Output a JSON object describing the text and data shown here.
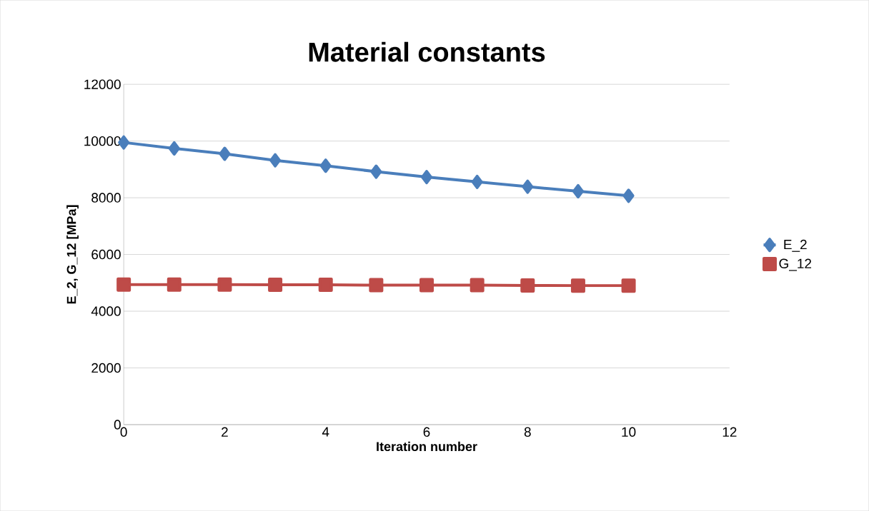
{
  "chart_data": {
    "type": "line",
    "title": "Material constants",
    "xlabel": "Iteration number",
    "ylabel": "E_2, G_12 [MPa]",
    "x": [
      0,
      1,
      2,
      3,
      4,
      5,
      6,
      7,
      8,
      9,
      10
    ],
    "series": [
      {
        "name": "E_2",
        "color": "#4a7ebb",
        "marker": "diamond",
        "values": [
          9950,
          9740,
          9550,
          9320,
          9130,
          8920,
          8730,
          8560,
          8390,
          8230,
          8070
        ]
      },
      {
        "name": "G_12",
        "color": "#be4b48",
        "marker": "square",
        "values": [
          4940,
          4940,
          4940,
          4930,
          4930,
          4920,
          4920,
          4920,
          4910,
          4900,
          4900
        ]
      }
    ],
    "xlim": [
      0,
      12
    ],
    "ylim": [
      0,
      12000
    ],
    "xticks": [
      0,
      2,
      4,
      6,
      8,
      10,
      12
    ],
    "yticks": [
      0,
      2000,
      4000,
      6000,
      8000,
      10000,
      12000
    ],
    "grid": "y",
    "legend": "right",
    "line_style": "solid"
  }
}
